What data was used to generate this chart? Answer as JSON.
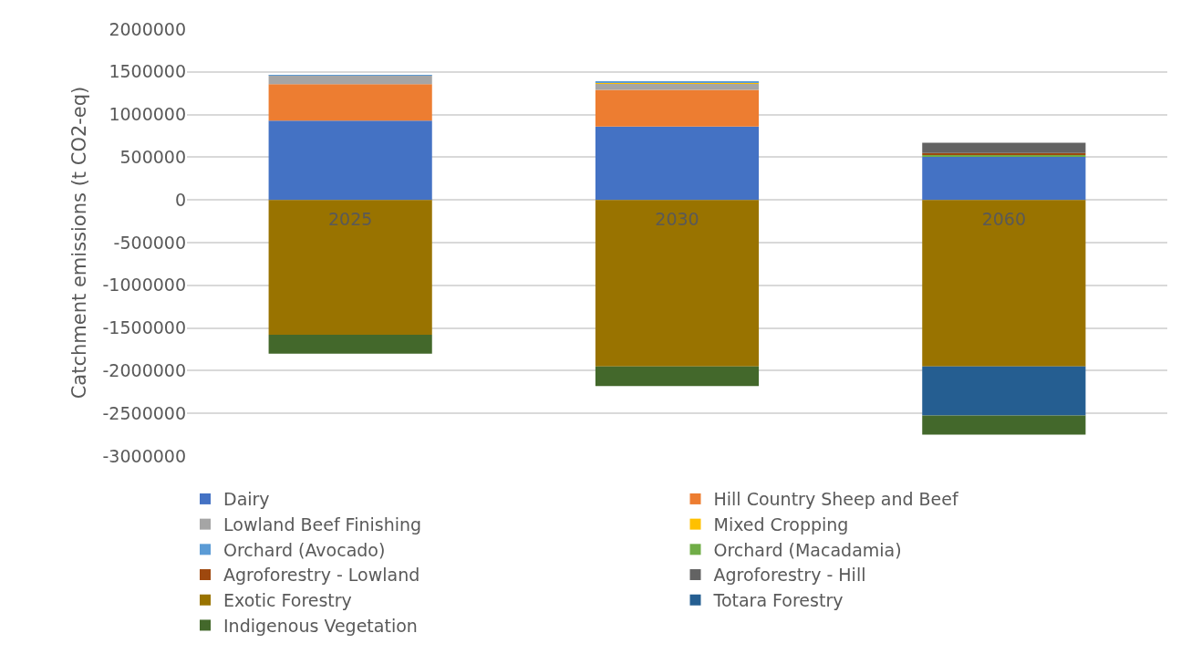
{
  "chart_data": {
    "type": "bar",
    "stacked": true,
    "ylabel": "Catchment emissions (t CO2-eq)",
    "categories": [
      "2025",
      "2030",
      "2060"
    ],
    "ylim": [
      -3000000,
      2000000
    ],
    "yticks": [
      -3000000,
      -2500000,
      -2000000,
      -1500000,
      -1000000,
      -500000,
      0,
      500000,
      1000000,
      1500000,
      2000000
    ],
    "grid": "y",
    "legend": "bottom",
    "series": [
      {
        "name": "Dairy",
        "color": "#4472c4",
        "values": [
          930000,
          860000,
          505000
        ]
      },
      {
        "name": "Hill Country Sheep and Beef",
        "color": "#ed7d31",
        "values": [
          425000,
          430000,
          null
        ]
      },
      {
        "name": "Lowland Beef Finishing",
        "color": "#a5a5a5",
        "values": [
          105000,
          72000,
          null
        ]
      },
      {
        "name": "Mixed Cropping",
        "color": "#ffc000",
        "values": [
          null,
          15000,
          null
        ]
      },
      {
        "name": "Orchard (Avocado)",
        "color": "#5b9bd5",
        "values": [
          5000,
          10000,
          null
        ]
      },
      {
        "name": "Orchard (Macadamia)",
        "color": "#70ad47",
        "values": [
          null,
          null,
          20000
        ]
      },
      {
        "name": "Agroforestry - Lowland",
        "color": "#9e480e",
        "values": [
          null,
          null,
          25000
        ]
      },
      {
        "name": "Agroforestry - Hill",
        "color": "#636363",
        "values": [
          null,
          null,
          120000
        ]
      },
      {
        "name": "Exotic Forestry",
        "color": "#997300",
        "values": [
          -1580000,
          -1950000,
          -1950000
        ]
      },
      {
        "name": "Totara Forestry",
        "color": "#255e91",
        "values": [
          null,
          null,
          -575000
        ]
      },
      {
        "name": "Indigenous Vegetation",
        "color": "#43682b",
        "values": [
          -220000,
          -230000,
          -225000
        ]
      }
    ]
  }
}
